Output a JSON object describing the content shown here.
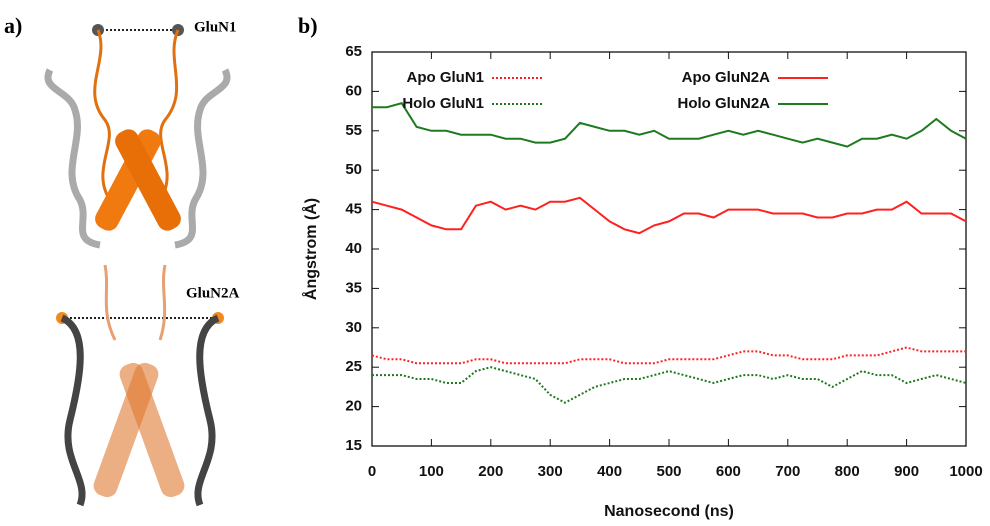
{
  "figure": {
    "panel_labels": [
      "a)",
      "b)"
    ],
    "structure_labels": [
      "GluN1",
      "GluN2A"
    ]
  },
  "chart_data": {
    "type": "line",
    "xlabel": "Nanosecond (ns)",
    "ylabel": "Ångstrom (Å)",
    "xlim": [
      0,
      1000
    ],
    "ylim": [
      15,
      65
    ],
    "xticks": [
      0,
      100,
      200,
      300,
      400,
      500,
      600,
      700,
      800,
      900,
      1000
    ],
    "yticks": [
      15,
      20,
      25,
      30,
      35,
      40,
      45,
      50,
      55,
      60,
      65
    ],
    "legend": "top",
    "x": [
      0,
      25,
      50,
      75,
      100,
      125,
      150,
      175,
      200,
      225,
      250,
      275,
      300,
      325,
      350,
      375,
      400,
      425,
      450,
      475,
      500,
      525,
      550,
      575,
      600,
      625,
      650,
      675,
      700,
      725,
      750,
      775,
      800,
      825,
      850,
      875,
      900,
      925,
      950,
      975,
      1000
    ],
    "series": [
      {
        "name": "Apo GluN1",
        "color": "#ff2020",
        "style": "dotted",
        "values": [
          26.5,
          26,
          26,
          25.5,
          25.5,
          25.5,
          25.5,
          26,
          26,
          25.5,
          25.5,
          25.5,
          25.5,
          25.5,
          26,
          26,
          26,
          25.5,
          25.5,
          25.5,
          26,
          26,
          26,
          26,
          26.5,
          27,
          27,
          26.5,
          26.5,
          26,
          26,
          26,
          26.5,
          26.5,
          26.5,
          27,
          27.5,
          27,
          27,
          27,
          27
        ]
      },
      {
        "name": "Apo GluN2A",
        "color": "#ff2020",
        "style": "solid",
        "values": [
          46,
          45.5,
          45,
          44,
          43,
          42.5,
          42.5,
          45.5,
          46,
          45,
          45.5,
          45,
          46,
          46,
          46.5,
          45,
          43.5,
          42.5,
          42,
          43,
          43.5,
          44.5,
          44.5,
          44,
          45,
          45,
          45,
          44.5,
          44.5,
          44.5,
          44,
          44,
          44.5,
          44.5,
          45,
          45,
          46,
          44.5,
          44.5,
          44.5,
          43.5
        ]
      },
      {
        "name": "Holo GluN1",
        "color": "#1e7a1e",
        "style": "dotted",
        "values": [
          24,
          24,
          24,
          23.5,
          23.5,
          23,
          23,
          24.5,
          25,
          24.5,
          24,
          23.5,
          21.5,
          20.5,
          21.5,
          22.5,
          23,
          23.5,
          23.5,
          24,
          24.5,
          24,
          23.5,
          23,
          23.5,
          24,
          24,
          23.5,
          24,
          23.5,
          23.5,
          22.5,
          23.5,
          24.5,
          24,
          24,
          23,
          23.5,
          24,
          23.5,
          23
        ]
      },
      {
        "name": "Holo GluN2A",
        "color": "#1e7a1e",
        "style": "solid",
        "values": [
          58,
          58,
          58.5,
          55.5,
          55,
          55,
          54.5,
          54.5,
          54.5,
          54,
          54,
          53.5,
          53.5,
          54,
          56,
          55.5,
          55,
          55,
          54.5,
          55,
          54,
          54,
          54,
          54.5,
          55,
          54.5,
          55,
          54.5,
          54,
          53.5,
          54,
          53.5,
          53,
          54,
          54,
          54.5,
          54,
          55,
          56.5,
          55,
          54
        ]
      }
    ]
  }
}
